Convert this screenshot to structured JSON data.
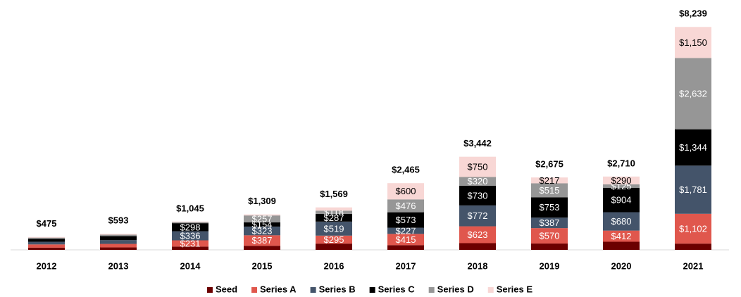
{
  "chart_data": {
    "type": "stacked_bar",
    "categories": [
      "2012",
      "2013",
      "2014",
      "2015",
      "2016",
      "2017",
      "2018",
      "2019",
      "2020",
      "2021"
    ],
    "series": [
      {
        "name": "Seed",
        "color": "#6b0000",
        "values": [
          80,
          90,
          120,
          150,
          230,
          174,
          247,
          233,
          299,
          230
        ],
        "value_labels": [
          null,
          null,
          null,
          null,
          null,
          null,
          null,
          null,
          null,
          null
        ]
      },
      {
        "name": "Series A",
        "color": "#e0574d",
        "values": [
          120,
          130,
          231,
          387,
          295,
          415,
          623,
          570,
          412,
          1102
        ],
        "value_labels": [
          null,
          null,
          "$231",
          "$387",
          "$295",
          "$415",
          "$623",
          "$570",
          "$412",
          "$1,102"
        ]
      },
      {
        "name": "Series B",
        "color": "#44546a",
        "values": [
          100,
          140,
          336,
          323,
          519,
          227,
          772,
          387,
          680,
          1781
        ],
        "value_labels": [
          null,
          null,
          "$336",
          "$323",
          "$519",
          "$227",
          "$772",
          "$387",
          "$680",
          "$1,781"
        ]
      },
      {
        "name": "Series C",
        "color": "#000000",
        "values": [
          110,
          150,
          298,
          154,
          287,
          573,
          730,
          753,
          904,
          1344
        ],
        "value_labels": [
          null,
          null,
          "$298",
          "$154",
          "$287",
          "$573",
          "$730",
          "$753",
          "$904",
          "$1,344"
        ]
      },
      {
        "name": "Series D",
        "color": "#969696",
        "values": [
          40,
          50,
          40,
          257,
          118,
          476,
          320,
          515,
          125,
          2632
        ],
        "value_labels": [
          null,
          null,
          null,
          "$257",
          "$118",
          "$476",
          "$320",
          "$515",
          "$125",
          "$2,632"
        ]
      },
      {
        "name": "Series E",
        "color": "#f8d7d5",
        "values": [
          25,
          33,
          20,
          38,
          120,
          600,
          750,
          217,
          290,
          1150
        ],
        "value_labels": [
          null,
          null,
          null,
          null,
          null,
          "$600",
          "$750",
          "$217",
          "$290",
          "$1,150"
        ]
      }
    ],
    "totals": [
      475,
      593,
      1045,
      1309,
      1569,
      2465,
      3442,
      2675,
      2710,
      8239
    ],
    "total_labels": [
      "$475",
      "$593",
      "$1,045",
      "$1,309",
      "$1,569",
      "$2,465",
      "$3,442",
      "$2,675",
      "$2,710",
      "$8,239"
    ],
    "ylim": [
      0,
      9000
    ],
    "legend": "bottom"
  }
}
